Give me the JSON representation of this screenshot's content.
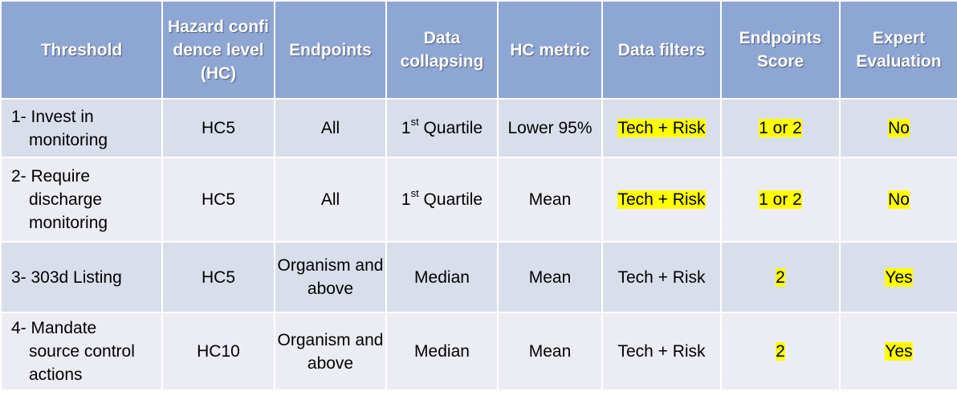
{
  "colors": {
    "header_bg": "#8ea6d4",
    "row_odd_bg": "#d9deeb",
    "row_even_bg": "#ecedf4",
    "highlight": "#ffff00"
  },
  "headers": [
    "Threshold",
    "Hazard confidence level (HC)",
    "Endpoints",
    "Data collapsing",
    "HC metric",
    "Data filters",
    "Endpoints Score",
    "Expert Evaluation"
  ],
  "rows": [
    {
      "threshold_first": "1- Invest in",
      "threshold_rest": "monitoring",
      "hc": "HC5",
      "endpoints": "All",
      "collapsing_prefix": "1",
      "collapsing_sup": "st",
      "collapsing_suffix": " Quartile",
      "metric": "Lower 95%",
      "filters": "Tech + Risk",
      "score": "1 or 2",
      "expert": "No"
    },
    {
      "threshold_first": "2- Require",
      "threshold_rest": "discharge monitoring",
      "hc": "HC5",
      "endpoints": "All",
      "collapsing_prefix": "1",
      "collapsing_sup": "st",
      "collapsing_suffix": " Quartile",
      "metric": "Mean",
      "filters": "Tech + Risk",
      "score": "1 or 2",
      "expert": "No"
    },
    {
      "threshold_first": "3- 303d Listing",
      "threshold_rest": "",
      "hc": "HC5",
      "endpoints": "Organism and above",
      "collapsing": "Median",
      "metric": "Mean",
      "filters": "Tech + Risk",
      "score": "2",
      "expert": "Yes"
    },
    {
      "threshold_first": "4- Mandate",
      "threshold_rest": "source control actions",
      "hc": "HC10",
      "endpoints": "Organism and above",
      "collapsing": "Median",
      "metric": "Mean",
      "filters": "Tech + Risk",
      "score": "2",
      "expert": "Yes"
    }
  ]
}
